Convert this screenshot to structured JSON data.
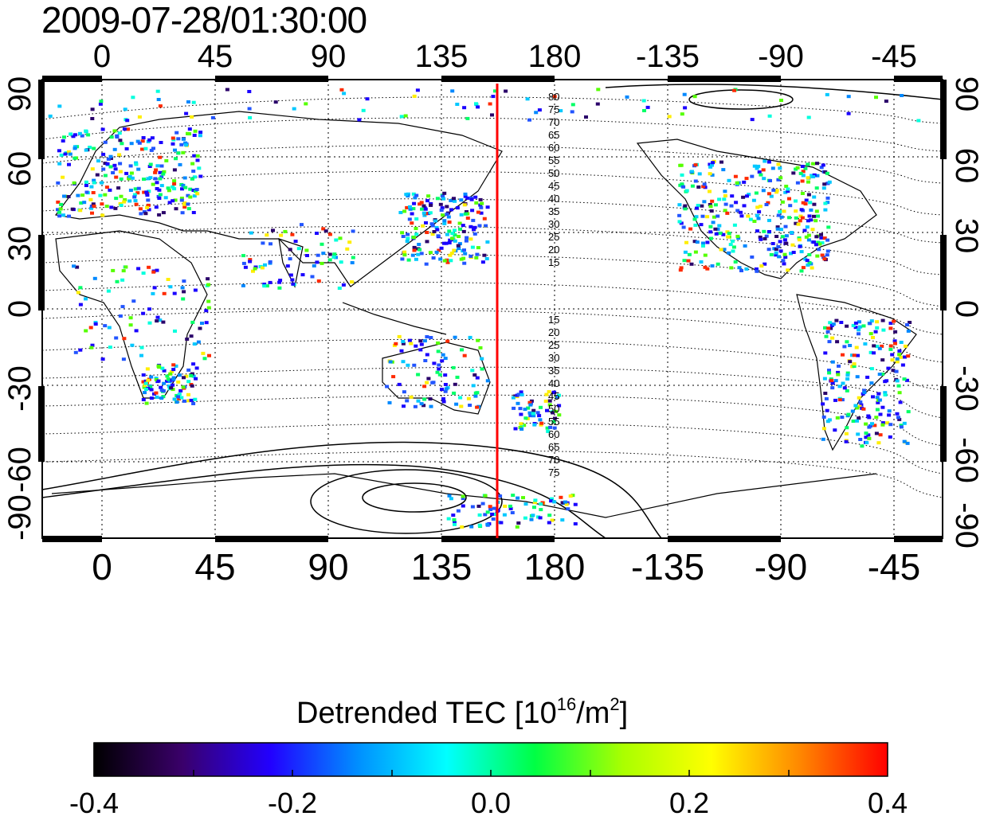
{
  "title": "2009-07-28/01:30:00",
  "map": {
    "lon_ticks": [
      "0",
      "45",
      "90",
      "135",
      "180",
      "-135",
      "-90",
      "-45"
    ],
    "lat_ticks": [
      "90",
      "60",
      "30",
      "0",
      "-30",
      "-60",
      "-90"
    ],
    "marker_line_color": "#ff0000",
    "marker_longitude": 158,
    "contour_labels_north": [
      "80",
      "75",
      "70",
      "65",
      "60",
      "55",
      "50",
      "45",
      "40",
      "35",
      "30",
      "25",
      "20",
      "15"
    ],
    "contour_labels_south": [
      "15",
      "20",
      "25",
      "30",
      "35",
      "40",
      "45",
      "50",
      "55",
      "60",
      "65",
      "70",
      "75"
    ]
  },
  "colorbar": {
    "title_prefix": "Detrended TEC  [10",
    "title_exp1": "16",
    "title_mid": "/m",
    "title_exp2": "2",
    "title_suffix": "]",
    "min": -0.4,
    "max": 0.4,
    "tick_labels": [
      "-0.4",
      "-0.2",
      "0.0",
      "0.2",
      "0.4"
    ],
    "colors": [
      "#000000",
      "#3a006a",
      "#2200ff",
      "#0090ff",
      "#00ffff",
      "#00ff44",
      "#aaff00",
      "#ffff00",
      "#ff8800",
      "#ff0000"
    ]
  }
}
